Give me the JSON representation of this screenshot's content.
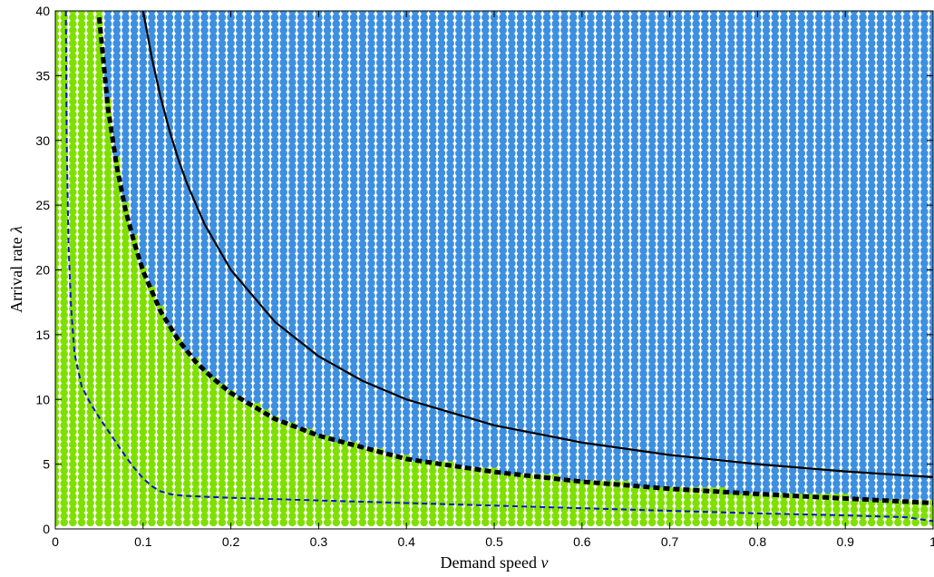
{
  "chart_data": {
    "type": "scatter",
    "title": "",
    "xlabel": "Demand speed",
    "xlabel_symbol": "v",
    "ylabel": "Arrival rate",
    "ylabel_symbol": "λ",
    "xlim": [
      0,
      1
    ],
    "ylim": [
      0,
      40
    ],
    "xticks": [
      "0",
      "0.1",
      "0.2",
      "0.3",
      "0.4",
      "0.5",
      "0.6",
      "0.7",
      "0.8",
      "0.9",
      "1"
    ],
    "yticks": [
      "0",
      "5",
      "10",
      "15",
      "20",
      "25",
      "30",
      "35",
      "40"
    ],
    "grid": false,
    "legend": "none",
    "colors": {
      "stable": "#7fe000",
      "unstable": "#3d8fe0",
      "bound_solid": "#000000",
      "bound_thick_dashed": "#000000",
      "bound_blue_dashed": "#1010cc"
    },
    "dot_grid": {
      "x_start": 0.0,
      "x_end": 1.0,
      "x_step": 0.01,
      "y_start": 0.5,
      "y_end": 40.0,
      "y_step": 0.5,
      "boundary": {
        "v": [
          0.05,
          0.06,
          0.07,
          0.08,
          0.09,
          0.1,
          0.12,
          0.14,
          0.16,
          0.18,
          0.2,
          0.25,
          0.3,
          0.4,
          0.5,
          0.6,
          0.7,
          0.8,
          0.9,
          1.0
        ],
        "lambda": [
          40.0,
          33.0,
          28.5,
          25.0,
          22.5,
          20.2,
          17.0,
          14.8,
          13.1,
          11.8,
          10.7,
          8.7,
          7.35,
          5.6,
          4.55,
          3.8,
          3.25,
          2.85,
          2.5,
          2.2
        ]
      }
    },
    "series": [
      {
        "style": "solid",
        "x": [
          0.1,
          0.11,
          0.12,
          0.13,
          0.14,
          0.15,
          0.17,
          0.2,
          0.25,
          0.3,
          0.35,
          0.4,
          0.5,
          0.6,
          0.7,
          0.8,
          0.9,
          1.0
        ],
        "y": [
          40.0,
          36.36,
          33.33,
          30.77,
          28.57,
          26.67,
          23.53,
          20.0,
          16.0,
          13.33,
          11.43,
          10.0,
          8.0,
          6.67,
          5.71,
          5.0,
          4.44,
          4.0
        ]
      },
      {
        "style": "thick-dashed",
        "x": [
          0.05,
          0.06,
          0.07,
          0.08,
          0.09,
          0.1,
          0.12,
          0.14,
          0.16,
          0.18,
          0.2,
          0.25,
          0.3,
          0.4,
          0.5,
          0.6,
          0.7,
          0.8,
          0.9,
          1.0
        ],
        "y": [
          39.5,
          32.5,
          28.0,
          24.6,
          22.1,
          19.9,
          16.8,
          14.6,
          12.9,
          11.6,
          10.5,
          8.5,
          7.2,
          5.4,
          4.4,
          3.65,
          3.1,
          2.7,
          2.35,
          2.0
        ]
      },
      {
        "style": "blue-dashed",
        "x": [
          0.012,
          0.013,
          0.015,
          0.018,
          0.022,
          0.03,
          0.04,
          0.05,
          0.06,
          0.07,
          0.08,
          0.09,
          0.1,
          0.11,
          0.12,
          0.13,
          0.14,
          0.15,
          0.2,
          0.3,
          0.4,
          0.5,
          0.6,
          0.7,
          0.8,
          0.9,
          0.97,
          1.0
        ],
        "y": [
          40.0,
          30.0,
          22.0,
          17.0,
          13.5,
          11.0,
          9.7,
          8.6,
          7.6,
          6.6,
          5.6,
          4.7,
          3.9,
          3.3,
          2.9,
          2.7,
          2.6,
          2.55,
          2.4,
          2.2,
          2.0,
          1.8,
          1.6,
          1.4,
          1.2,
          1.05,
          0.9,
          0.6
        ]
      }
    ]
  }
}
